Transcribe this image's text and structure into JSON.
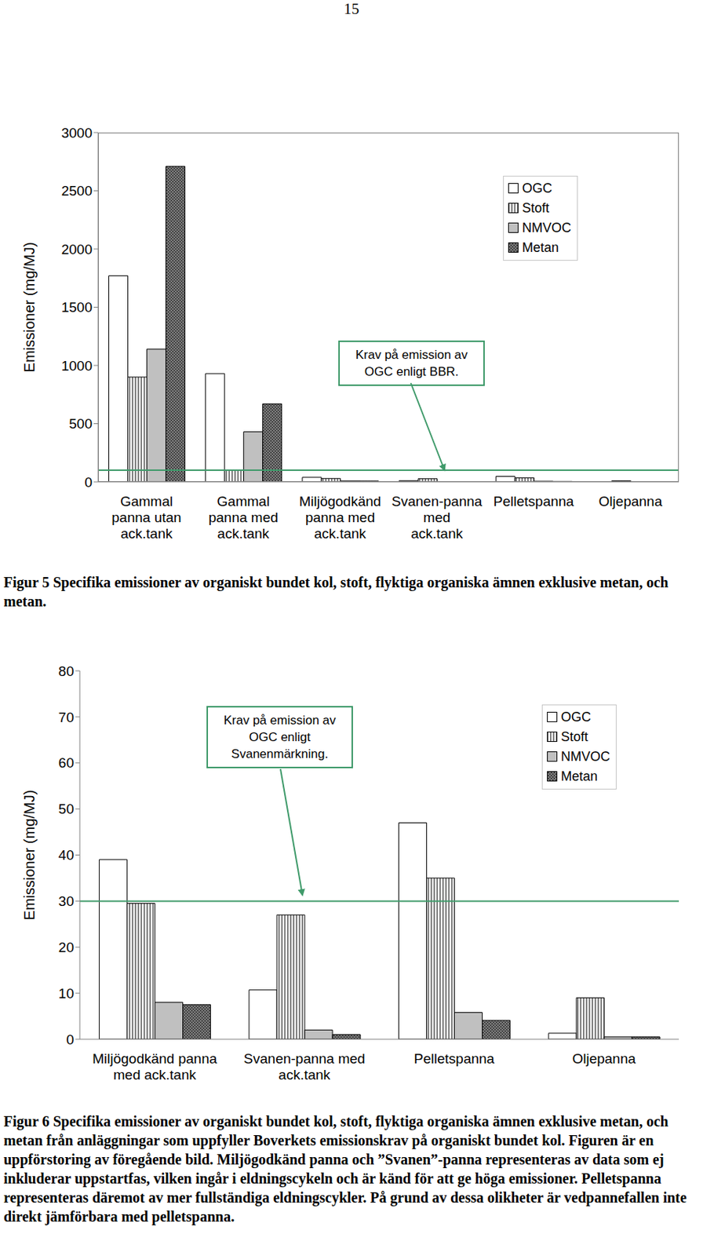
{
  "page_number": "15",
  "chart_data": [
    {
      "type": "bar",
      "y_label": "Emissioner (mg/MJ)",
      "categories": [
        "Gammal panna utan ack.tank",
        "Gammal panna med ack.tank",
        "Miljögodkänd panna med ack.tank",
        "Svanen-panna med ack.tank",
        "Pelletspanna",
        "Oljepanna"
      ],
      "series": [
        {
          "name": "OGC",
          "color": "#ffffff",
          "values": [
            1770,
            930,
            39,
            10.7,
            47,
            1.3
          ]
        },
        {
          "name": "Stoft",
          "color": "#ffffff",
          "values": [
            900,
            100,
            29.5,
            27,
            35,
            9
          ]
        },
        {
          "name": "NMVOC",
          "color": "#c0c0c0",
          "values": [
            1140,
            430,
            8,
            2,
            5.8,
            0.5
          ]
        },
        {
          "name": "Metan",
          "color": "#808080",
          "values": [
            2710,
            670,
            7.5,
            1,
            4.1,
            0.5
          ]
        }
      ],
      "ylim": [
        0,
        3000
      ],
      "yticks": [
        0,
        500,
        1000,
        1500,
        2000,
        2500,
        3000
      ],
      "grid": false,
      "legend": "top-right",
      "annotation": {
        "text": "Krav på emission av OGC enligt BBR.",
        "y": 100,
        "color": "#3f9a6a"
      },
      "caption": "Figur 5 Specifika emissioner av organiskt bundet kol, stoft, flyktiga organiska ämnen exklusive metan, och metan."
    },
    {
      "type": "bar",
      "y_label": "Emissioner (mg/MJ)",
      "categories": [
        "Miljögodkänd panna med ack.tank",
        "Svanen-panna med ack.tank",
        "Pelletspanna",
        "Oljepanna"
      ],
      "series": [
        {
          "name": "OGC",
          "color": "#ffffff",
          "values": [
            39,
            10.7,
            47,
            1.3
          ]
        },
        {
          "name": "Stoft",
          "color": "#ffffff",
          "values": [
            29.5,
            27,
            35,
            9
          ]
        },
        {
          "name": "NMVOC",
          "color": "#c0c0c0",
          "values": [
            8,
            2,
            5.8,
            0.5
          ]
        },
        {
          "name": "Metan",
          "color": "#808080",
          "values": [
            7.5,
            1,
            4.1,
            0.5
          ]
        }
      ],
      "ylim": [
        0,
        80
      ],
      "yticks": [
        0,
        10,
        20,
        30,
        40,
        50,
        60,
        70,
        80
      ],
      "grid": false,
      "legend": "top-right",
      "annotation": {
        "text": "Krav på emission av OGC enligt Svanenmärkning.",
        "y": 30,
        "color": "#3f9a6a"
      },
      "caption": "Figur 6 Specifika emissioner av organiskt bundet kol, stoft, flyktiga organiska ämnen exklusive metan, och metan från anläggningar som uppfyller Boverkets emissionskrav på organiskt bundet kol. Figuren är en uppförstoring av föregående bild.  Miljögodkänd panna och ”Svanen”-panna representeras av data som ej inkluderar uppstartfas, vilken ingår i eldningscykeln och är känd för att ge höga emissioner. Pelletspanna representeras däremot av mer fullständiga eldningscykler. På grund av dessa olikheter är vedpannefallen inte direkt jämförbara med pelletspanna."
    }
  ]
}
